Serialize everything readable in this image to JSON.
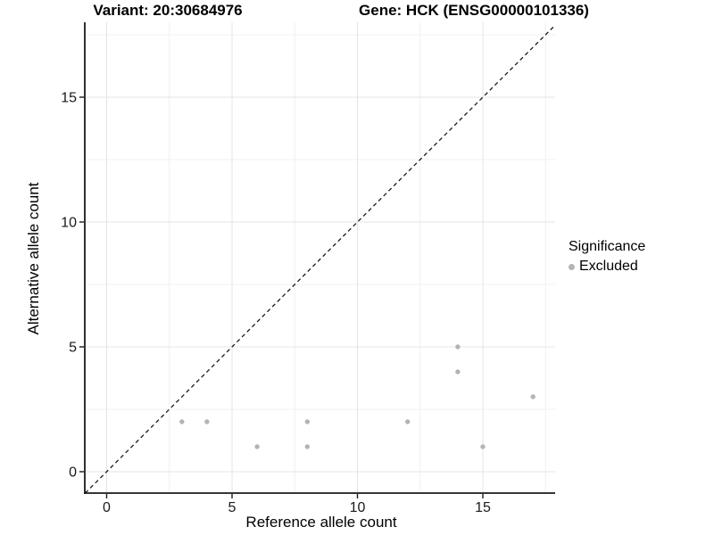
{
  "colors": {
    "background": "#ffffff",
    "point": "#b4b4b4",
    "grid_major": "#e4e4e4",
    "grid_minor": "#f0f0f0",
    "axis_line": "#1a1a1a",
    "tick_text": "#1a1a1a",
    "reference_line": "#1a1a1a"
  },
  "chart_data": {
    "type": "scatter",
    "titles": {
      "left": "Variant: 20:30684976",
      "right": "Gene: HCK (ENSG00000101336)"
    },
    "xlabel": "Reference allele count",
    "ylabel": "Alternative allele count",
    "x_ticks": [
      0,
      5,
      10,
      15
    ],
    "y_ticks": [
      0,
      5,
      10,
      15
    ],
    "x_minor_ticks": [
      2.5,
      7.5,
      12.5,
      17.5
    ],
    "y_minor_ticks": [
      2.5,
      7.5,
      12.5,
      17.5
    ],
    "xlim": [
      -0.87,
      17.88
    ],
    "ylim": [
      -0.86,
      18.0
    ],
    "grid": "major+minor",
    "legend": {
      "title": "Significance",
      "position": "right",
      "items": [
        {
          "label": "Excluded",
          "color": "#b4b4b4"
        }
      ]
    },
    "series": [
      {
        "name": "Excluded",
        "color": "#b4b4b4",
        "points": [
          [
            3,
            2
          ],
          [
            4,
            2
          ],
          [
            6,
            1
          ],
          [
            8,
            1
          ],
          [
            8,
            2
          ],
          [
            12,
            2
          ],
          [
            14,
            4
          ],
          [
            14,
            5
          ],
          [
            15,
            1
          ],
          [
            17,
            3
          ]
        ]
      }
    ],
    "reference_line": {
      "slope": 1,
      "intercept": 0,
      "style": "dashed",
      "color": "#1a1a1a"
    }
  }
}
